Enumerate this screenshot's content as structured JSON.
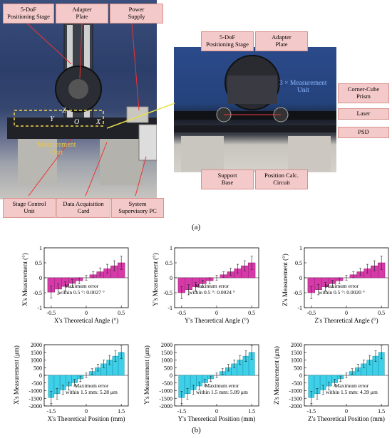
{
  "figure": {
    "photo_labels": {
      "positioning_stage": "5-DoF\nPositioning Stage",
      "adapter_plate": "Adapter\nPlate",
      "power_supply": "Power\nSupply",
      "measurement_unit": "Measurement\nUnit",
      "stage_control_unit": "Stage Control\nUnit",
      "data_acquisition_card": "Data Acquisition\nCard",
      "system_supervisory_pc": "System\nSupervisory PC",
      "zoom_positioning_stage": "5-DoF\nPositioning Stage",
      "zoom_adapter_plate": "Adapter\nPlate",
      "measurement_unit_3x": "3 × Measurement\nUnit",
      "corner_cube_prism": "Corner-Cube\nPrism",
      "laser": "Laser",
      "psd": "PSD",
      "support_base": "Support\nBase",
      "position_calc_circuit": "Position Calc.\nCircuit",
      "axis_z": "Z",
      "axis_y": "Y",
      "axis_x": "X",
      "axis_o": "O"
    },
    "caption_a": "(a)",
    "caption_b": "(b)",
    "colors": {
      "angle_bars": "#d63aa8",
      "position_bars": "#3ed0e8",
      "label_box": "#f4c9c9"
    }
  },
  "chart_data": [
    {
      "type": "bar",
      "title": "",
      "xlabel": "X's Theoretical Angle (°)",
      "ylabel": "X's Measurement (°)",
      "x": [
        -0.5,
        -0.4,
        -0.3,
        -0.2,
        -0.1,
        0,
        0.1,
        0.2,
        0.3,
        0.4,
        0.5
      ],
      "values": [
        -0.48,
        -0.38,
        -0.29,
        -0.19,
        -0.1,
        0.0,
        0.1,
        0.2,
        0.3,
        0.4,
        0.5
      ],
      "errors": [
        0.2,
        0.17,
        0.15,
        0.13,
        0.1,
        0.08,
        0.1,
        0.13,
        0.15,
        0.17,
        0.22
      ],
      "xlim": [
        -0.6,
        0.6
      ],
      "ylim": [
        -1,
        1
      ],
      "xticks": [
        "-0.5",
        "0",
        "0.5"
      ],
      "yticks": [
        "-1",
        "-0.5",
        "0",
        "0.5",
        "1"
      ],
      "annotation": "Maximum error\nwithin 0.5 °: 0.0027 °"
    },
    {
      "type": "bar",
      "title": "",
      "xlabel": "Y's Theoretical Angle (°)",
      "ylabel": "Y's Measurement (°)",
      "x": [
        -0.5,
        -0.4,
        -0.3,
        -0.2,
        -0.1,
        0,
        0.1,
        0.2,
        0.3,
        0.4,
        0.5
      ],
      "values": [
        -0.5,
        -0.4,
        -0.3,
        -0.2,
        -0.1,
        0.0,
        0.1,
        0.2,
        0.3,
        0.4,
        0.5
      ],
      "errors": [
        0.2,
        0.17,
        0.15,
        0.12,
        0.1,
        0.08,
        0.1,
        0.12,
        0.15,
        0.17,
        0.22
      ],
      "xlim": [
        -0.6,
        0.6
      ],
      "ylim": [
        -1,
        1
      ],
      "xticks": [
        "-0.5",
        "0",
        "0.5"
      ],
      "yticks": [
        "-1",
        "-0.5",
        "0",
        "0.5",
        "1"
      ],
      "annotation": "Maximum error\nwithin 0.5 °: 0.0024 °"
    },
    {
      "type": "bar",
      "title": "",
      "xlabel": "Z's Theoretical Angle (°)",
      "ylabel": "Z's Measurement (°)",
      "x": [
        -0.5,
        -0.4,
        -0.3,
        -0.2,
        -0.1,
        0,
        0.1,
        0.2,
        0.3,
        0.4,
        0.5
      ],
      "values": [
        -0.5,
        -0.4,
        -0.3,
        -0.2,
        -0.1,
        0.0,
        0.1,
        0.2,
        0.3,
        0.4,
        0.5
      ],
      "errors": [
        0.2,
        0.17,
        0.15,
        0.12,
        0.1,
        0.08,
        0.1,
        0.12,
        0.15,
        0.17,
        0.22
      ],
      "xlim": [
        -0.6,
        0.6
      ],
      "ylim": [
        -1,
        1
      ],
      "xticks": [
        "-0.5",
        "0",
        "0.5"
      ],
      "yticks": [
        "-1",
        "-0.5",
        "0",
        "0.5",
        "1"
      ],
      "annotation": "Maximum error\nwithin 0.5 °: 0.0020 °"
    },
    {
      "type": "bar",
      "title": "",
      "xlabel": "X's Theoretical Position (mm)",
      "ylabel": "X's Measurement (μm)",
      "x": [
        -1.5,
        -1.25,
        -1.0,
        -0.75,
        -0.5,
        -0.25,
        0,
        0.25,
        0.5,
        0.75,
        1.0,
        1.25,
        1.5
      ],
      "values": [
        -1450,
        -1200,
        -950,
        -700,
        -480,
        -230,
        0,
        250,
        500,
        750,
        1000,
        1250,
        1500
      ],
      "errors": [
        400,
        350,
        300,
        250,
        220,
        180,
        150,
        180,
        220,
        250,
        300,
        350,
        420
      ],
      "xlim": [
        -1.8,
        1.8
      ],
      "ylim": [
        -2000,
        2000
      ],
      "xticks": [
        "-1.5",
        "0",
        "1.5"
      ],
      "yticks": [
        "-2000",
        "-1500",
        "-1000",
        "-500",
        "0",
        "500",
        "1000",
        "1500",
        "2000"
      ],
      "annotation": "Maximum error\nwithin 1.5 mm: 5.28 μm"
    },
    {
      "type": "bar",
      "title": "",
      "xlabel": "Y's Theoretical Position (mm)",
      "ylabel": "Y's Measurement (μm)",
      "x": [
        -1.5,
        -1.25,
        -1.0,
        -0.75,
        -0.5,
        -0.25,
        0,
        0.25,
        0.5,
        0.75,
        1.0,
        1.25,
        1.5
      ],
      "values": [
        -1450,
        -1200,
        -950,
        -700,
        -480,
        -230,
        0,
        250,
        500,
        750,
        1000,
        1250,
        1500
      ],
      "errors": [
        400,
        350,
        300,
        250,
        220,
        180,
        150,
        180,
        220,
        250,
        300,
        350,
        450
      ],
      "xlim": [
        -1.8,
        1.8
      ],
      "ylim": [
        -2000,
        2000
      ],
      "xticks": [
        "-1.5",
        "0",
        "1.5"
      ],
      "yticks": [
        "-2000",
        "-1500",
        "-1000",
        "-500",
        "0",
        "500",
        "1000",
        "1500",
        "2000"
      ],
      "annotation": "Maximum error\nwithin 1.5 mm: 5.89 μm"
    },
    {
      "type": "bar",
      "title": "",
      "xlabel": "Z's Theoretical Position (mm)",
      "ylabel": "Z's Measurement (μm)",
      "x": [
        -1.5,
        -1.25,
        -1.0,
        -0.75,
        -0.5,
        -0.25,
        0,
        0.25,
        0.5,
        0.75,
        1.0,
        1.25,
        1.5
      ],
      "values": [
        -1450,
        -1200,
        -950,
        -700,
        -480,
        -230,
        0,
        250,
        500,
        750,
        1000,
        1250,
        1500
      ],
      "errors": [
        400,
        350,
        300,
        250,
        220,
        180,
        150,
        180,
        220,
        250,
        300,
        350,
        420
      ],
      "xlim": [
        -1.8,
        1.8
      ],
      "ylim": [
        -2000,
        2000
      ],
      "xticks": [
        "-1.5",
        "0",
        "1.5"
      ],
      "yticks": [
        "-2000",
        "-1500",
        "-1000",
        "-500",
        "0",
        "500",
        "1000",
        "1500",
        "2000"
      ],
      "annotation": "Maximum error\nwithin 1.5 mm: 4.39 μm"
    }
  ]
}
